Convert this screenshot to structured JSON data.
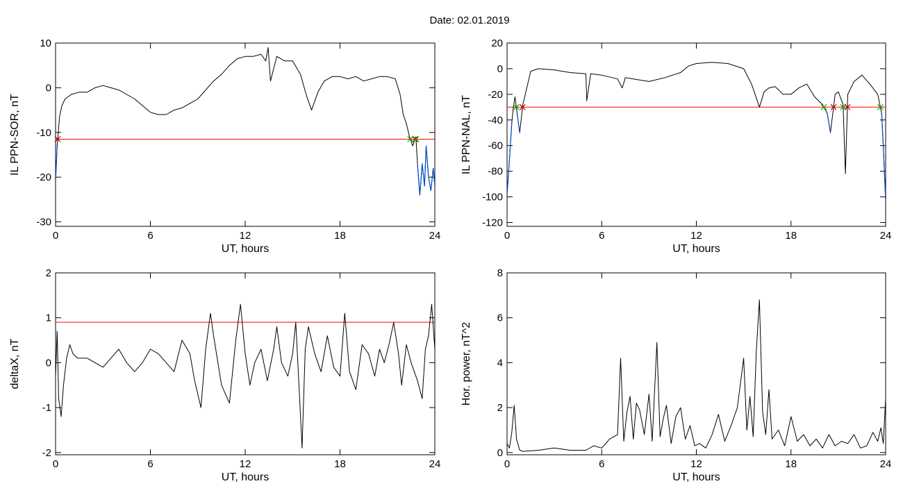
{
  "title": "Date:  02.01.2019",
  "colors": {
    "series": "#000000",
    "threshold": "#ff0000",
    "highlight": "#0050c8",
    "marker_red": "#c00000",
    "marker_green": "#00b000",
    "marker_blue": "#0070ff"
  },
  "chart_data": [
    {
      "type": "line",
      "xlabel": "UT, hours",
      "ylabel": "IL PPN-SOR, nT",
      "xlim": [
        0,
        24
      ],
      "ylim": [
        -31,
        10
      ],
      "xticks": [
        0,
        6,
        12,
        18,
        24
      ],
      "yticks": [
        -30,
        -20,
        -10,
        0,
        10
      ],
      "threshold": -11.5,
      "series": [
        {
          "x": [
            0,
            0.1,
            0.25,
            0.4,
            0.6,
            1,
            1.5,
            2,
            2.5,
            3,
            3.5,
            4,
            4.5,
            5,
            5.5,
            6,
            6.5,
            7,
            7.5,
            8,
            8.5,
            9,
            9.5,
            10,
            10.5,
            11,
            11.5,
            12,
            12.5,
            13,
            13.3,
            13.45,
            13.6,
            14,
            14.5,
            15,
            15.5,
            15.9,
            16.2,
            16.6,
            17,
            17.5,
            18,
            18.5,
            19,
            19.5,
            20,
            20.5,
            21,
            21.5,
            21.8,
            22,
            22.2,
            22.4,
            22.6,
            22.8,
            22.9,
            23.05,
            23.2,
            23.35,
            23.45,
            23.6,
            23.75,
            23.9,
            24
          ],
          "y": [
            -21,
            -13,
            -6.5,
            -4,
            -2.5,
            -1.5,
            -1,
            -1,
            0,
            0.5,
            0,
            -0.5,
            -1.5,
            -2.5,
            -4,
            -5.5,
            -6,
            -6,
            -5,
            -4.5,
            -3.5,
            -2.5,
            -0.5,
            1.5,
            3,
            5,
            6.5,
            7,
            7,
            7.5,
            6,
            9,
            1.5,
            7,
            6,
            6,
            3,
            -2,
            -5,
            -1,
            1.5,
            2.5,
            2.5,
            2,
            2.5,
            1.5,
            2,
            2.5,
            2.5,
            2,
            -1.5,
            -6,
            -8,
            -11,
            -13,
            -11,
            -17,
            -24,
            -17,
            -22,
            -13,
            -20,
            -23,
            -18,
            -22
          ]
        }
      ]
    },
    {
      "type": "line",
      "xlabel": "UT, hours",
      "ylabel": "IL PPN-NAL, nT",
      "xlim": [
        0,
        24
      ],
      "ylim": [
        -123,
        20
      ],
      "xticks": [
        0,
        6,
        12,
        18,
        24
      ],
      "yticks": [
        -120,
        -100,
        -80,
        -60,
        -40,
        -20,
        0,
        20
      ],
      "threshold": -30,
      "series": [
        {
          "x": [
            0,
            0.1,
            0.2,
            0.3,
            0.4,
            0.5,
            0.65,
            0.8,
            1,
            1.5,
            2,
            3,
            4,
            5,
            5.05,
            5.3,
            6,
            7,
            7.3,
            7.5,
            8,
            9,
            10,
            11,
            11.5,
            12,
            13,
            14,
            15,
            15.5,
            16,
            16.3,
            16.6,
            17,
            17.5,
            18,
            18.5,
            19,
            19.5,
            20,
            20.3,
            20.5,
            20.8,
            21,
            21.3,
            21.45,
            21.6,
            21.8,
            22,
            22.5,
            23,
            23.5,
            23.75,
            23.85,
            24
          ],
          "y": [
            -98,
            -80,
            -62,
            -42,
            -30,
            -22,
            -36,
            -50,
            -28,
            -2,
            0,
            -1,
            -3,
            -4,
            -25,
            -4,
            -5,
            -8,
            -15,
            -7,
            -8,
            -10,
            -7,
            -3,
            2,
            4,
            5,
            4,
            0,
            -12,
            -30,
            -18,
            -15,
            -14,
            -20,
            -20,
            -15,
            -12,
            -22,
            -28,
            -35,
            -50,
            -20,
            -18,
            -28,
            -82,
            -20,
            -15,
            -10,
            -5,
            -12,
            -20,
            -35,
            -60,
            -103
          ]
        }
      ]
    },
    {
      "type": "line",
      "xlabel": "UT, hours",
      "ylabel": "deltaX, nT",
      "xlim": [
        0,
        24
      ],
      "ylim": [
        -2.05,
        2
      ],
      "xticks": [
        0,
        6,
        12,
        18,
        24
      ],
      "yticks": [
        -2,
        -1,
        0,
        1,
        2
      ],
      "threshold": 0.9,
      "series": [
        {
          "x": [
            0,
            0.1,
            0.2,
            0.35,
            0.5,
            0.7,
            0.9,
            1.1,
            1.4,
            2,
            2.5,
            3,
            3.5,
            4,
            4.5,
            5,
            5.5,
            6,
            6.5,
            7,
            7.5,
            8,
            8.5,
            8.8,
            9.2,
            9.5,
            9.8,
            10,
            10.5,
            11,
            11.4,
            11.7,
            12,
            12.3,
            12.6,
            13,
            13.4,
            13.8,
            14,
            14.3,
            14.7,
            15,
            15.2,
            15.4,
            15.6,
            15.8,
            16,
            16.4,
            16.8,
            17.2,
            17.6,
            18,
            18.3,
            18.6,
            19,
            19.4,
            19.8,
            20.2,
            20.5,
            20.8,
            21.1,
            21.4,
            21.7,
            21.9,
            22.2,
            22.5,
            22.9,
            23.2,
            23.4,
            23.6,
            23.8,
            24
          ],
          "y": [
            -0.3,
            0.7,
            -0.8,
            -1.2,
            -0.5,
            0.1,
            0.4,
            0.2,
            0.1,
            0.1,
            0,
            -0.1,
            0.1,
            0.3,
            0,
            -0.2,
            0,
            0.3,
            0.2,
            0,
            -0.2,
            0.5,
            0.2,
            -0.4,
            -1,
            0.3,
            1.1,
            0.6,
            -0.5,
            -0.9,
            0.5,
            1.3,
            0.2,
            -0.5,
            0,
            0.3,
            -0.4,
            0.3,
            0.8,
            0,
            -0.3,
            0.2,
            0.9,
            -0.5,
            -1.9,
            0.3,
            0.8,
            0.2,
            -0.2,
            0.6,
            -0.1,
            -0.3,
            1.1,
            -0.2,
            -0.6,
            0.4,
            0.2,
            -0.3,
            0.3,
            0,
            0.4,
            0.9,
            0.2,
            -0.5,
            0.4,
            0,
            -0.4,
            -0.8,
            0.3,
            0.6,
            1.3,
            0.3
          ]
        }
      ]
    },
    {
      "type": "line",
      "xlabel": "UT, hours",
      "ylabel": "Hor. power, nT^2",
      "xlim": [
        0,
        24
      ],
      "ylim": [
        -0.1,
        8
      ],
      "xticks": [
        0,
        6,
        12,
        18,
        24
      ],
      "yticks": [
        0,
        2,
        4,
        6,
        8
      ],
      "series": [
        {
          "x": [
            0,
            0.15,
            0.3,
            0.45,
            0.6,
            0.8,
            1,
            2,
            3,
            4,
            5,
            5.5,
            6,
            6.5,
            7,
            7.2,
            7.4,
            7.6,
            7.8,
            8,
            8.2,
            8.4,
            8.7,
            9,
            9.2,
            9.5,
            9.7,
            9.9,
            10.1,
            10.4,
            10.7,
            11,
            11.3,
            11.6,
            11.9,
            12.2,
            12.6,
            13,
            13.4,
            13.8,
            14.2,
            14.6,
            15,
            15.2,
            15.4,
            15.6,
            15.8,
            16,
            16.2,
            16.4,
            16.6,
            16.8,
            17.2,
            17.6,
            18,
            18.4,
            18.8,
            19.2,
            19.6,
            20,
            20.4,
            20.8,
            21.2,
            21.6,
            22,
            22.4,
            22.8,
            23.2,
            23.5,
            23.7,
            23.85,
            24
          ],
          "y": [
            0.4,
            0.2,
            0.9,
            2.1,
            0.6,
            0.1,
            0.05,
            0.1,
            0.2,
            0.1,
            0.1,
            0.3,
            0.2,
            0.6,
            0.8,
            4.2,
            0.5,
            1.8,
            2.5,
            0.6,
            2.2,
            1.9,
            0.8,
            2.6,
            0.5,
            4.9,
            0.7,
            1.5,
            2.1,
            0.4,
            1.6,
            2.0,
            0.6,
            1.2,
            0.3,
            0.4,
            0.2,
            0.8,
            1.7,
            0.5,
            1.2,
            2.0,
            4.2,
            1.0,
            2.5,
            0.7,
            4.5,
            6.8,
            1.8,
            0.8,
            2.8,
            0.6,
            1.0,
            0.3,
            1.6,
            0.5,
            0.8,
            0.3,
            0.6,
            0.2,
            0.8,
            0.3,
            0.5,
            0.4,
            0.8,
            0.2,
            0.3,
            0.9,
            0.5,
            1.1,
            0.4,
            2.4
          ]
        }
      ]
    }
  ]
}
